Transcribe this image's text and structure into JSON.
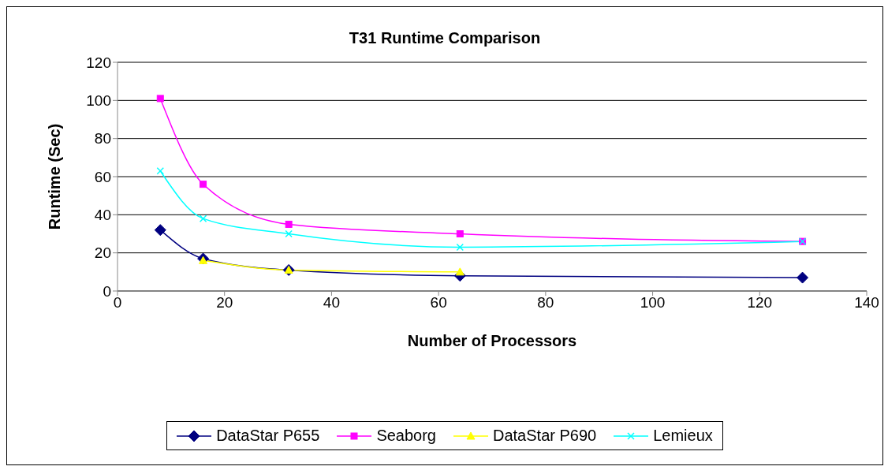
{
  "chart_data": {
    "type": "line",
    "title": "T31 Runtime Comparison",
    "xlabel": "Number of Processors",
    "ylabel": "Runtime (Sec)",
    "xlim": [
      0,
      140
    ],
    "xticks": [
      0,
      20,
      40,
      60,
      80,
      100,
      120,
      140
    ],
    "ylim": [
      0,
      120
    ],
    "yticks": [
      0,
      20,
      40,
      60,
      80,
      100,
      120
    ],
    "grid": "y",
    "legend": "bottom",
    "series": [
      {
        "name": "DataStar P655",
        "color": "#000080",
        "marker": "diamond",
        "x": [
          8,
          16,
          32,
          64,
          128
        ],
        "values": [
          32,
          17,
          11,
          8,
          7
        ]
      },
      {
        "name": "Seaborg",
        "color": "#ff00ff",
        "marker": "square",
        "x": [
          8,
          16,
          32,
          64,
          128
        ],
        "values": [
          101,
          56,
          35,
          30,
          26
        ]
      },
      {
        "name": "DataStar P690",
        "color": "#ffff00",
        "marker": "triangle",
        "x": [
          16,
          32,
          64
        ],
        "values": [
          16,
          11,
          10
        ]
      },
      {
        "name": "Lemieux",
        "color": "#00ffff",
        "marker": "cross",
        "x": [
          8,
          16,
          32,
          64,
          128
        ],
        "values": [
          63,
          38,
          30,
          23,
          26
        ]
      }
    ]
  }
}
